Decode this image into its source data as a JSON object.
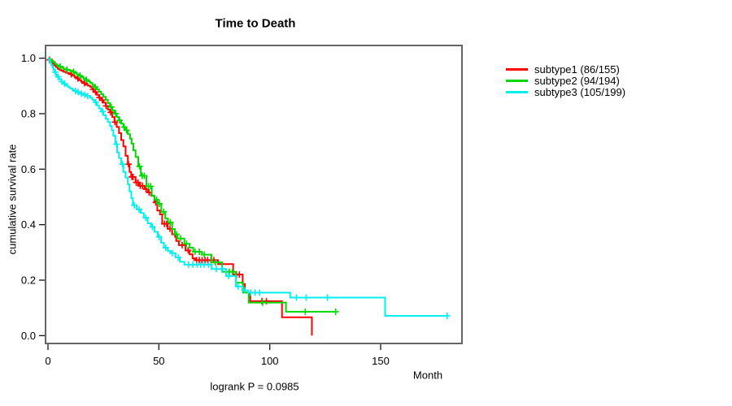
{
  "chart_data": {
    "type": "line",
    "subtype": "kaplan-meier-survival",
    "title": "Time to Death",
    "xlabel": "Month",
    "ylabel": "cumulative survival rate",
    "footnote": "logrank P = 0.0985",
    "xlim": [
      0,
      186
    ],
    "ylim": [
      0,
      1.03
    ],
    "grid": false,
    "legend_position": "right-outside",
    "x_ticks": [
      [
        0,
        "0"
      ],
      [
        50,
        "50"
      ],
      [
        100,
        "100"
      ],
      [
        150,
        "150"
      ]
    ],
    "y_ticks": [
      [
        0.0,
        "0.0"
      ],
      [
        0.2,
        "0.2"
      ],
      [
        0.4,
        "0.4"
      ],
      [
        0.6,
        "0.6"
      ],
      [
        0.8,
        "0.8"
      ],
      [
        1.0,
        "1.0"
      ]
    ],
    "series": [
      {
        "name": "subtype1",
        "label": "subtype1 (86/155)",
        "color": "#ff0000",
        "events": 86,
        "n": 155,
        "steps": [
          [
            0,
            1.0
          ],
          [
            0.6,
            0.994
          ],
          [
            1.2,
            0.987
          ],
          [
            2,
            0.981
          ],
          [
            2.8,
            0.974
          ],
          [
            3.6,
            0.968
          ],
          [
            4.4,
            0.962
          ],
          [
            5.2,
            0.958
          ],
          [
            6,
            0.955
          ],
          [
            7,
            0.951
          ],
          [
            8,
            0.948
          ],
          [
            9,
            0.946
          ],
          [
            10,
            0.942
          ],
          [
            11,
            0.938
          ],
          [
            12,
            0.932
          ],
          [
            13,
            0.927
          ],
          [
            14,
            0.921
          ],
          [
            15,
            0.915
          ],
          [
            16,
            0.91
          ],
          [
            17,
            0.905
          ],
          [
            18,
            0.901
          ],
          [
            19,
            0.897
          ],
          [
            20,
            0.888
          ],
          [
            21,
            0.878
          ],
          [
            22,
            0.868
          ],
          [
            23,
            0.858
          ],
          [
            24,
            0.849
          ],
          [
            25,
            0.84
          ],
          [
            26,
            0.828
          ],
          [
            27,
            0.815
          ],
          [
            28,
            0.805
          ],
          [
            29,
            0.788
          ],
          [
            30,
            0.77
          ],
          [
            31,
            0.752
          ],
          [
            32,
            0.73
          ],
          [
            33,
            0.705
          ],
          [
            34,
            0.682
          ],
          [
            35,
            0.648
          ],
          [
            36,
            0.618
          ],
          [
            36.8,
            0.59
          ],
          [
            37.5,
            0.572
          ],
          [
            39.5,
            0.552
          ],
          [
            41,
            0.54
          ],
          [
            43.5,
            0.528
          ],
          [
            45,
            0.516
          ],
          [
            46.5,
            0.504
          ],
          [
            48,
            0.48
          ],
          [
            49.3,
            0.451
          ],
          [
            50.5,
            0.437
          ],
          [
            51.5,
            0.403
          ],
          [
            54,
            0.385
          ],
          [
            56,
            0.365
          ],
          [
            57.8,
            0.341
          ],
          [
            59,
            0.326
          ],
          [
            62,
            0.307
          ],
          [
            63.9,
            0.293
          ],
          [
            65.2,
            0.278
          ],
          [
            66.4,
            0.272
          ],
          [
            76.7,
            0.258
          ],
          [
            83.5,
            0.22
          ],
          [
            87.8,
            0.186
          ],
          [
            88.8,
            0.155
          ],
          [
            91.2,
            0.124
          ],
          [
            105.5,
            0.066
          ],
          [
            119,
            0.0
          ]
        ],
        "censor_months": [
          0.8,
          1.8,
          10.5,
          13.5,
          16.5,
          20.3,
          21.5,
          23.2,
          24.5,
          26.2,
          28.3,
          30.2,
          36.3,
          37.8,
          38.4,
          39.8,
          40.6,
          41.6,
          42.6,
          44.2,
          45.6,
          48.6,
          52.5,
          53.5,
          55,
          57.2,
          60.5,
          63.2,
          67,
          68.2,
          69.5,
          70.8,
          72,
          73.5,
          74.8,
          85,
          86.3,
          96.5,
          98.5
        ]
      },
      {
        "name": "subtype2",
        "label": "subtype2 (94/194)",
        "color": "#00d900",
        "events": 94,
        "n": 194,
        "steps": [
          [
            0,
            1.0
          ],
          [
            0.8,
            0.995
          ],
          [
            1.6,
            0.99
          ],
          [
            2.4,
            0.985
          ],
          [
            3.2,
            0.979
          ],
          [
            4,
            0.974
          ],
          [
            5,
            0.97
          ],
          [
            6,
            0.966
          ],
          [
            7,
            0.962
          ],
          [
            8,
            0.959
          ],
          [
            9,
            0.957
          ],
          [
            10,
            0.955
          ],
          [
            11,
            0.951
          ],
          [
            12,
            0.947
          ],
          [
            13,
            0.942
          ],
          [
            14,
            0.937
          ],
          [
            15,
            0.932
          ],
          [
            16,
            0.927
          ],
          [
            17,
            0.922
          ],
          [
            18,
            0.917
          ],
          [
            19,
            0.911
          ],
          [
            20,
            0.904
          ],
          [
            21,
            0.896
          ],
          [
            22,
            0.888
          ],
          [
            23,
            0.879
          ],
          [
            24,
            0.87
          ],
          [
            25,
            0.861
          ],
          [
            26,
            0.85
          ],
          [
            27,
            0.838
          ],
          [
            28,
            0.824
          ],
          [
            29,
            0.812
          ],
          [
            30,
            0.8
          ],
          [
            31,
            0.788
          ],
          [
            32,
            0.776
          ],
          [
            33,
            0.764
          ],
          [
            34,
            0.752
          ],
          [
            35,
            0.74
          ],
          [
            36,
            0.726
          ],
          [
            37,
            0.71
          ],
          [
            37.7,
            0.692
          ],
          [
            38.5,
            0.668
          ],
          [
            39.5,
            0.644
          ],
          [
            40.7,
            0.61
          ],
          [
            41.9,
            0.576
          ],
          [
            44.4,
            0.538
          ],
          [
            46.8,
            0.504
          ],
          [
            48,
            0.49
          ],
          [
            49.3,
            0.475
          ],
          [
            51.1,
            0.446
          ],
          [
            52.9,
            0.422
          ],
          [
            54.1,
            0.408
          ],
          [
            56,
            0.384
          ],
          [
            57.2,
            0.365
          ],
          [
            58.4,
            0.35
          ],
          [
            61.5,
            0.331
          ],
          [
            63.9,
            0.317
          ],
          [
            65.5,
            0.302
          ],
          [
            69.4,
            0.292
          ],
          [
            73.7,
            0.264
          ],
          [
            78.5,
            0.23
          ],
          [
            84.7,
            0.191
          ],
          [
            88,
            0.155
          ],
          [
            90.5,
            0.119
          ],
          [
            107.3,
            0.086
          ],
          [
            130,
            0.086
          ]
        ],
        "censor_months": [
          5.5,
          8.5,
          11.5,
          14.5,
          17.3,
          21.3,
          28.5,
          30.5,
          32.3,
          34.3,
          35.5,
          41.3,
          42.5,
          43.4,
          45.3,
          46.3,
          49,
          50.2,
          52.2,
          55.2,
          58,
          59.8,
          62.5,
          66.3,
          68.3,
          70.5,
          75.5,
          80.3,
          81.8,
          83.2,
          96.8,
          116,
          129.7
        ]
      },
      {
        "name": "subtype3",
        "label": "subtype3 (105/199)",
        "color": "#00f0f0",
        "events": 105,
        "n": 199,
        "steps": [
          [
            0,
            1.0
          ],
          [
            0.5,
            0.992
          ],
          [
            1,
            0.983
          ],
          [
            1.5,
            0.975
          ],
          [
            2,
            0.966
          ],
          [
            2.5,
            0.958
          ],
          [
            3,
            0.95
          ],
          [
            3.5,
            0.941
          ],
          [
            4,
            0.933
          ],
          [
            5,
            0.924
          ],
          [
            6,
            0.916
          ],
          [
            7,
            0.908
          ],
          [
            8,
            0.902
          ],
          [
            9,
            0.896
          ],
          [
            10,
            0.891
          ],
          [
            11,
            0.886
          ],
          [
            12,
            0.882
          ],
          [
            13,
            0.878
          ],
          [
            14.5,
            0.872
          ],
          [
            16,
            0.868
          ],
          [
            17.5,
            0.864
          ],
          [
            19,
            0.858
          ],
          [
            20,
            0.85
          ],
          [
            21,
            0.841
          ],
          [
            22,
            0.83
          ],
          [
            23,
            0.819
          ],
          [
            24,
            0.808
          ],
          [
            25,
            0.795
          ],
          [
            26,
            0.782
          ],
          [
            27,
            0.77
          ],
          [
            28,
            0.755
          ],
          [
            28.8,
            0.74
          ],
          [
            29.5,
            0.72
          ],
          [
            30.4,
            0.69
          ],
          [
            31.2,
            0.66
          ],
          [
            32,
            0.64
          ],
          [
            33,
            0.618
          ],
          [
            34,
            0.59
          ],
          [
            35,
            0.57
          ],
          [
            36,
            0.545
          ],
          [
            36.8,
            0.52
          ],
          [
            37.6,
            0.495
          ],
          [
            38.3,
            0.47
          ],
          [
            40,
            0.455
          ],
          [
            41.8,
            0.442
          ],
          [
            43.2,
            0.425
          ],
          [
            45,
            0.405
          ],
          [
            46.5,
            0.392
          ],
          [
            48,
            0.374
          ],
          [
            49.5,
            0.356
          ],
          [
            51,
            0.335
          ],
          [
            52.3,
            0.317
          ],
          [
            54,
            0.305
          ],
          [
            55.4,
            0.297
          ],
          [
            57.5,
            0.282
          ],
          [
            59.5,
            0.266
          ],
          [
            61.5,
            0.256
          ],
          [
            73.8,
            0.24
          ],
          [
            80.3,
            0.215
          ],
          [
            84.7,
            0.177
          ],
          [
            87.7,
            0.163
          ],
          [
            90.2,
            0.155
          ],
          [
            109.2,
            0.137
          ],
          [
            152,
            0.071
          ],
          [
            180,
            0.071
          ]
        ],
        "censor_months": [
          3.3,
          4.6,
          6.2,
          7.5,
          12.4,
          13.6,
          15.1,
          16.6,
          17.9,
          21.6,
          24.6,
          30.9,
          33.6,
          38.9,
          41.1,
          44.1,
          47.1,
          50.1,
          53.1,
          56.1,
          58.7,
          63.4,
          65.4,
          67.3,
          68.9,
          70.4,
          72.4,
          75.9,
          78.4,
          81.4,
          85.7,
          88.7,
          91.4,
          93.4,
          95.4,
          112,
          116.4,
          126,
          180
        ]
      }
    ]
  }
}
